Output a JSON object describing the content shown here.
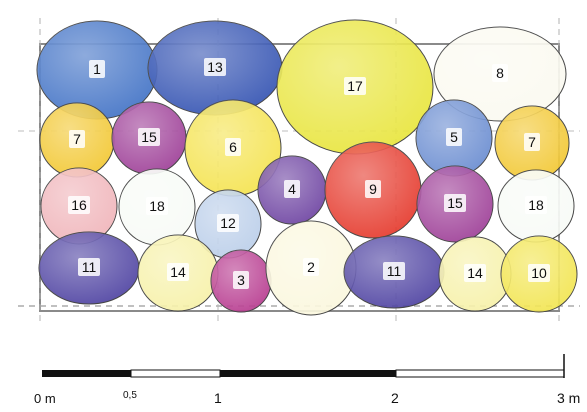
{
  "plants": [
    {
      "id": "p1",
      "label": "1",
      "color": "#3d6fc4"
    },
    {
      "id": "p13",
      "label": "13",
      "color": "#2f4fb0"
    },
    {
      "id": "p17",
      "label": "17",
      "color": "#e8e437"
    },
    {
      "id": "p8",
      "label": "8",
      "color": "#fbfaf0"
    },
    {
      "id": "p7a",
      "label": "7",
      "color": "#f2c72e"
    },
    {
      "id": "p15a",
      "label": "15",
      "color": "#9b3a95"
    },
    {
      "id": "p6",
      "label": "6",
      "color": "#f4e24a"
    },
    {
      "id": "p5",
      "label": "5",
      "color": "#6689cf"
    },
    {
      "id": "p7b",
      "label": "7",
      "color": "#f2c72e"
    },
    {
      "id": "p16",
      "label": "16",
      "color": "#f0b3b8"
    },
    {
      "id": "p18a",
      "label": "18",
      "color": "#f7fbf6"
    },
    {
      "id": "p12",
      "label": "12",
      "color": "#b9cde9"
    },
    {
      "id": "p4",
      "label": "4",
      "color": "#6a3fa0"
    },
    {
      "id": "p9",
      "label": "9",
      "color": "#e43427"
    },
    {
      "id": "p15b",
      "label": "15",
      "color": "#9b3a95"
    },
    {
      "id": "p18b",
      "label": "18",
      "color": "#f7fbf6"
    },
    {
      "id": "p11a",
      "label": "11",
      "color": "#4a3ea0"
    },
    {
      "id": "p14a",
      "label": "14",
      "color": "#f6f1a6"
    },
    {
      "id": "p3",
      "label": "3",
      "color": "#b6368d"
    },
    {
      "id": "p2",
      "label": "2",
      "color": "#fbf7dd"
    },
    {
      "id": "p11b",
      "label": "11",
      "color": "#4a3ea0"
    },
    {
      "id": "p14b",
      "label": "14",
      "color": "#f6f1a6"
    },
    {
      "id": "p10",
      "label": "10",
      "color": "#f2e44c"
    }
  ],
  "scale": {
    "ticks": [
      "0 m",
      "0,5",
      "1",
      "2",
      "3 m"
    ],
    "colors": {
      "dark": "#111111",
      "light": "#ffffff"
    }
  },
  "bed": {
    "border_color": "#888888"
  }
}
